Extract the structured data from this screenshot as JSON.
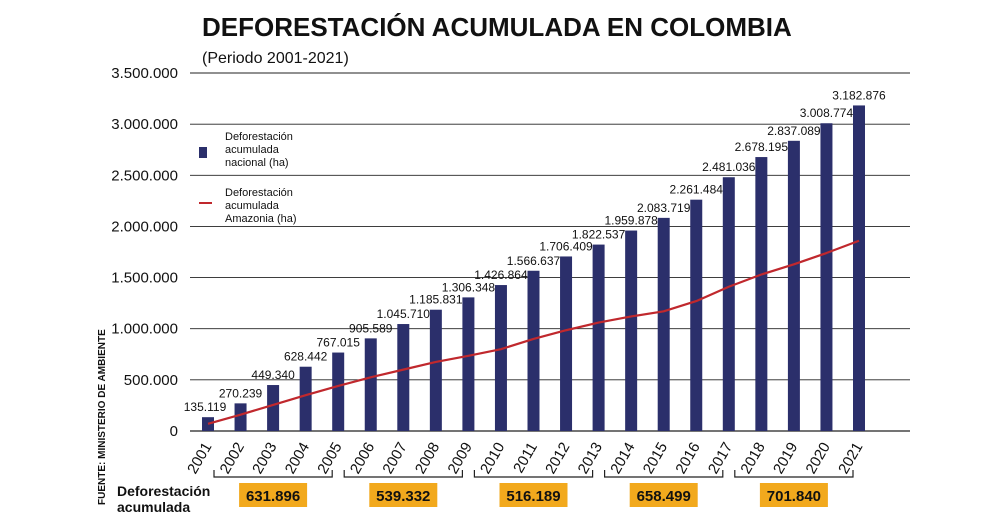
{
  "chart_data": {
    "type": "bar",
    "title": "DEFORESTACIÓN ACUMULADA EN COLOMBIA",
    "subtitle": "(Periodo 2001-2021)",
    "categories": [
      "2001",
      "2002",
      "2003",
      "2004",
      "2005",
      "2006",
      "2007",
      "2008",
      "2009",
      "2010",
      "2011",
      "2012",
      "2013",
      "2014",
      "2015",
      "2016",
      "2017",
      "2018",
      "2019",
      "2020",
      "2021"
    ],
    "series": [
      {
        "name": "Deforestación acumulada nacional (ha)",
        "type": "bar",
        "color": "#2b2f6b",
        "values": [
          135119,
          270239,
          449340,
          628442,
          767015,
          905589,
          1045710,
          1185831,
          1306348,
          1426864,
          1566637,
          1706409,
          1822537,
          1959878,
          2083719,
          2261484,
          2481036,
          2678195,
          2837089,
          3008774,
          3182876
        ],
        "labels": [
          "135.119",
          "270.239",
          "449.340",
          "628.442",
          "767.015",
          "905.589",
          "1.045.710",
          "1.185.831",
          "1.306.348",
          "1.426.864",
          "1.566.637",
          "1.706.409",
          "1.822.537",
          "1.959.878",
          "2.083.719",
          "2.261.484",
          "2.481.036",
          "2.678.195",
          "2.837.089",
          "3.008.774",
          "3.182.876"
        ]
      },
      {
        "name": "Deforestación acumulada Amazonia (ha)",
        "type": "line",
        "color": "#c0282d",
        "values": [
          70000,
          160000,
          255000,
          350000,
          440000,
          525000,
          600000,
          675000,
          735000,
          800000,
          900000,
          985000,
          1060000,
          1120000,
          1170000,
          1270000,
          1410000,
          1530000,
          1630000,
          1740000,
          1860000
        ]
      }
    ],
    "ylim": [
      0,
      3500000
    ],
    "yticks": [
      0,
      500000,
      1000000,
      1500000,
      2000000,
      2500000,
      3000000,
      3500000
    ],
    "ytick_labels": [
      "0",
      "500.000",
      "1.000.000",
      "1.500.000",
      "2.000.000",
      "2.500.000",
      "3.000.000",
      "3.500.000"
    ],
    "grid": true,
    "legend": {
      "position": "top-left",
      "bar_lines": [
        "Deforestación",
        "acumulada",
        "nacional (ha)"
      ],
      "line_lines": [
        "Deforestación",
        "acumulada",
        "Amazonia (ha)"
      ]
    },
    "source": "FUENTE: MINISTERIO DE AMBIENTE",
    "footer_label": [
      "Deforestación",
      "acumulada"
    ],
    "summary": [
      {
        "from": "2001",
        "to": "2005",
        "value": "631.896"
      },
      {
        "from": "2005",
        "to": "2009",
        "value": "539.332"
      },
      {
        "from": "2009",
        "to": "2013",
        "value": "516.189"
      },
      {
        "from": "2013",
        "to": "2017",
        "value": "658.499"
      },
      {
        "from": "2017",
        "to": "2021",
        "value": "701.840"
      }
    ],
    "summary_color": "#f2a91d"
  }
}
